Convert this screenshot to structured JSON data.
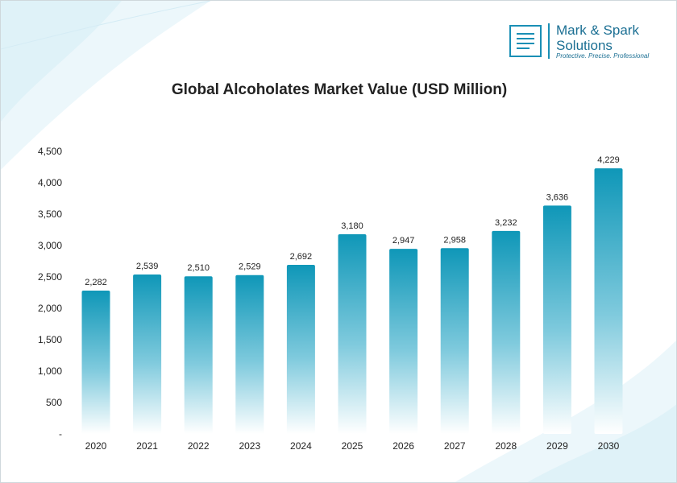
{
  "brand": {
    "name_line1": "Mark & Spark",
    "name_line2": "Solutions",
    "tagline": "Protective. Precise. Professional"
  },
  "colors": {
    "bar_top": "#0f97b8",
    "bar_bottom": "#ffffff",
    "brand": "#1a8fb5",
    "text": "#222222"
  },
  "chart_data": {
    "type": "bar",
    "title": "Global Alcoholates Market Value (USD Million)",
    "xlabel": "",
    "ylabel": "",
    "categories": [
      "2020",
      "2021",
      "2022",
      "2023",
      "2024",
      "2025",
      "2026",
      "2027",
      "2028",
      "2029",
      "2030"
    ],
    "values": [
      2282,
      2539,
      2510,
      2529,
      2692,
      3180,
      2947,
      2958,
      3232,
      3636,
      4229
    ],
    "value_labels": [
      "2,282",
      "2,539",
      "2,510",
      "2,529",
      "2,692",
      "3,180",
      "2,947",
      "2,958",
      "3,232",
      "3,636",
      "4,229"
    ],
    "ylim": [
      0,
      4500
    ],
    "yticks": [
      0,
      500,
      1000,
      1500,
      2000,
      2500,
      3000,
      3500,
      4000,
      4500
    ],
    "ytick_labels": [
      "-",
      "500",
      "1,000",
      "1,500",
      "2,000",
      "2,500",
      "3,000",
      "3,500",
      "4,000",
      "4,500"
    ],
    "grid": false,
    "legend": "none"
  }
}
